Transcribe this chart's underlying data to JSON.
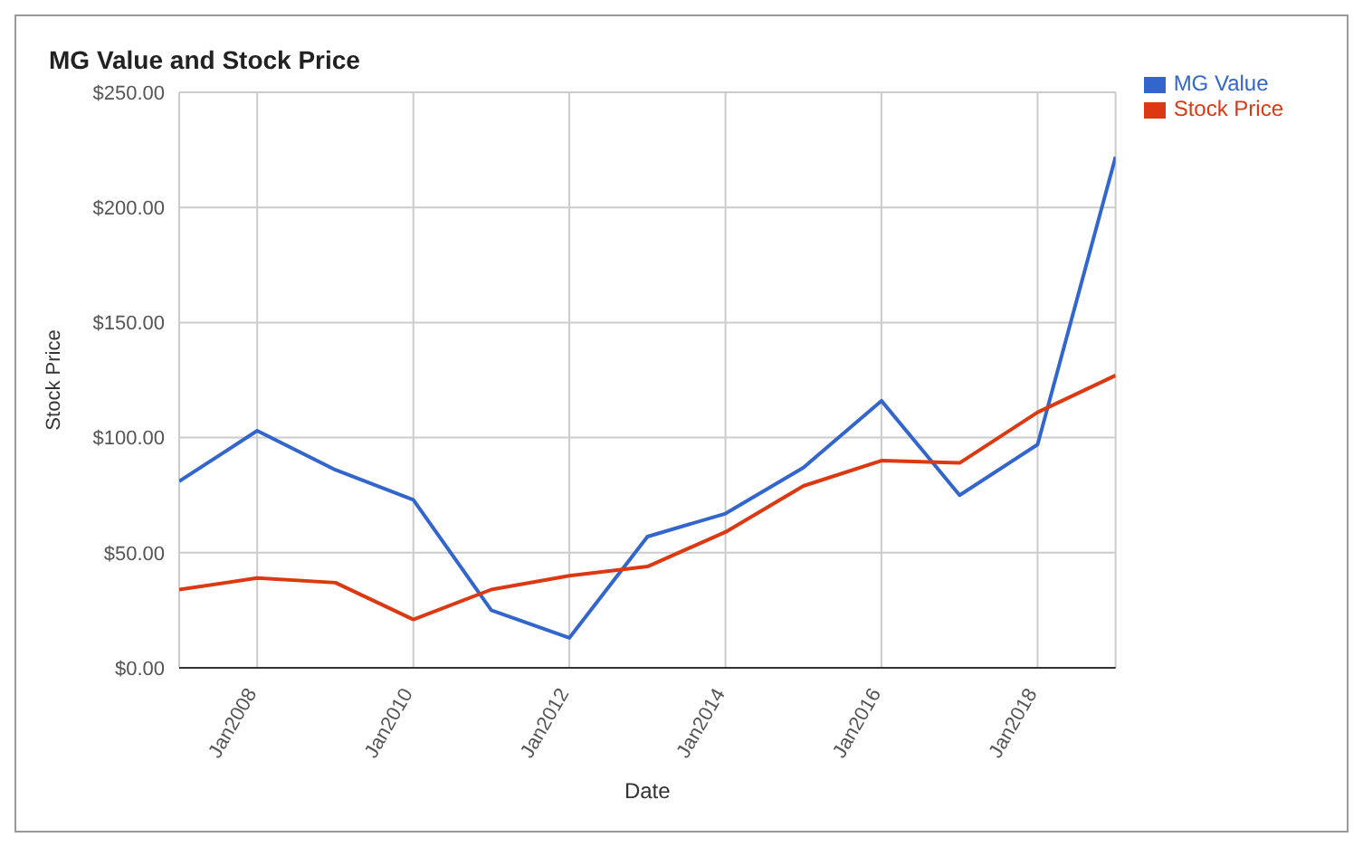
{
  "chart_data": {
    "type": "line",
    "title": "MG Value and Stock Price",
    "xlabel": "Date",
    "ylabel": "Stock Price",
    "x": [
      "2007-01",
      "2008-01",
      "2009-01",
      "2010-01",
      "2011-01",
      "2012-01",
      "2013-01",
      "2014-01",
      "2015-01",
      "2016-01",
      "2017-01",
      "2018-01",
      "2019-01"
    ],
    "series": [
      {
        "name": "MG Value",
        "color": "#3366cc",
        "values": [
          81,
          103,
          86,
          73,
          25,
          13,
          57,
          67,
          87,
          116,
          75,
          97,
          222
        ]
      },
      {
        "name": "Stock Price",
        "color": "#dc3912",
        "values": [
          34,
          39,
          37,
          21,
          34,
          40,
          44,
          59,
          79,
          90,
          89,
          111,
          127
        ]
      }
    ],
    "xlim": [
      "2007-01",
      "2019-01"
    ],
    "xticks": [
      {
        "value": "2008-01",
        "label": "Jan2008"
      },
      {
        "value": "2010-01",
        "label": "Jan2010"
      },
      {
        "value": "2012-01",
        "label": "Jan2012"
      },
      {
        "value": "2014-01",
        "label": "Jan2014"
      },
      {
        "value": "2016-01",
        "label": "Jan2016"
      },
      {
        "value": "2018-01",
        "label": "Jan2018"
      }
    ],
    "ylim": [
      0,
      250
    ],
    "yticks": [
      {
        "value": 0,
        "label": "$0.00"
      },
      {
        "value": 50,
        "label": "$50.00"
      },
      {
        "value": 100,
        "label": "$100.00"
      },
      {
        "value": 150,
        "label": "$150.00"
      },
      {
        "value": 200,
        "label": "$200.00"
      },
      {
        "value": 250,
        "label": "$250.00"
      }
    ],
    "grid": true,
    "legend": "top right",
    "marker": "none",
    "line_style": "solid"
  }
}
